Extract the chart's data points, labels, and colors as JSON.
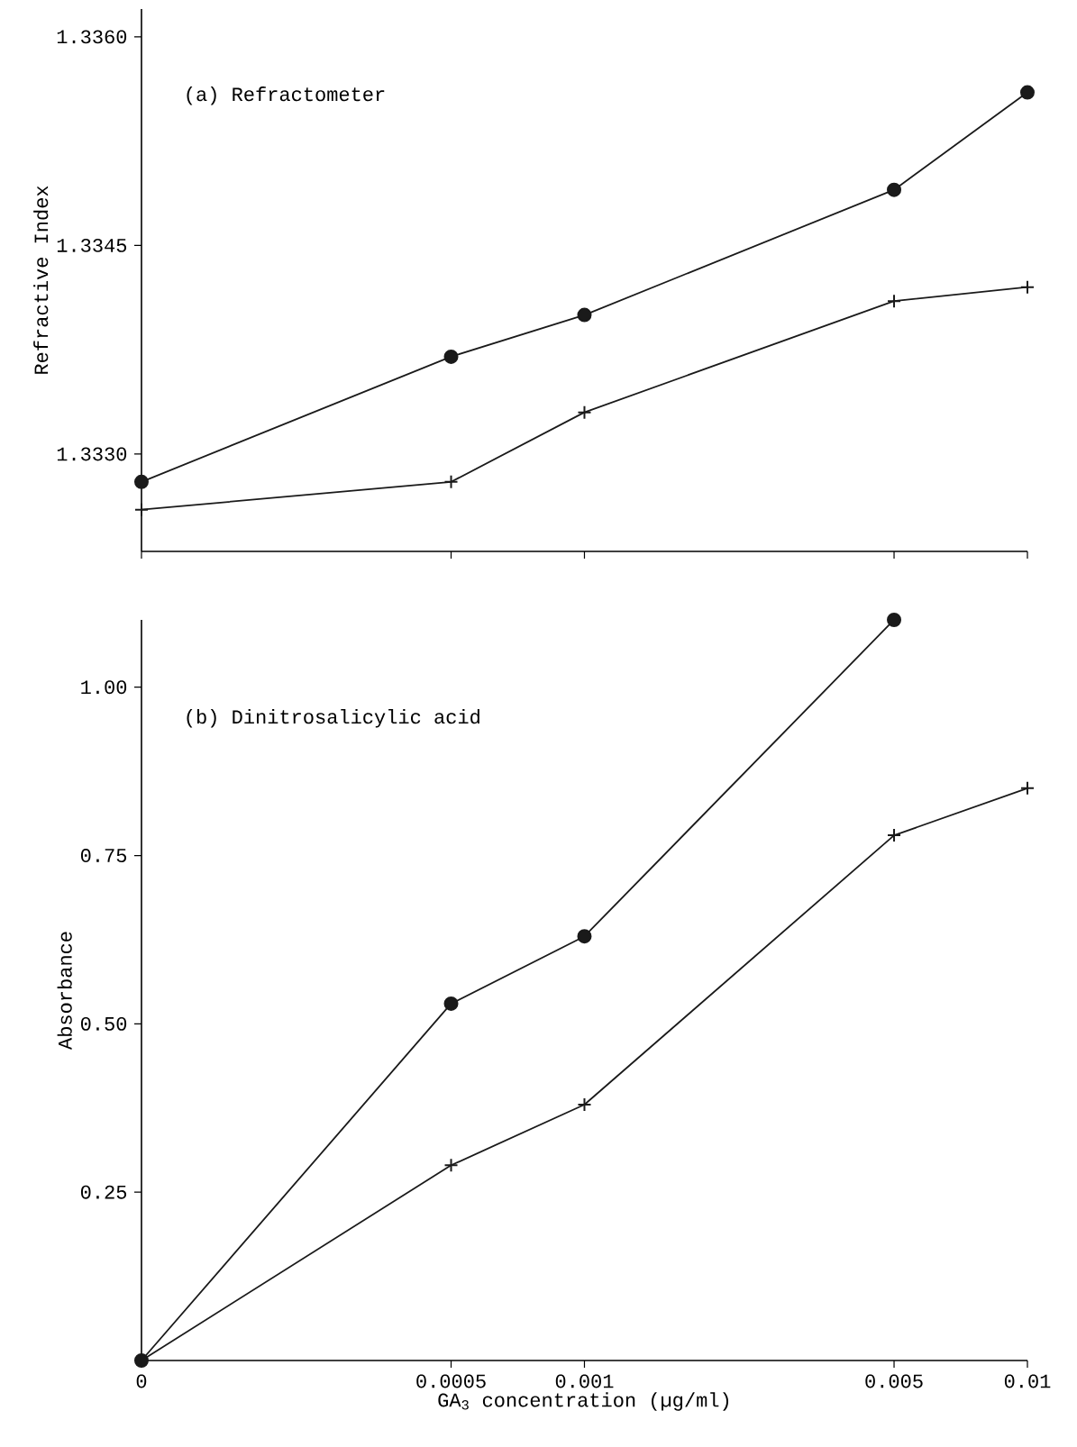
{
  "chart_data": [
    {
      "type": "line",
      "title": "(a) Refractometer",
      "ylabel": "Refractive Index",
      "x": [
        0.0001,
        0.0005,
        0.001,
        0.005,
        0.01
      ],
      "xlim": [
        0.0001,
        0.01
      ],
      "log": "x",
      "xticks": [
        {
          "value": 0.0001,
          "label": null
        },
        {
          "value": 0.0005,
          "label": null
        },
        {
          "value": 0.001,
          "label": null
        },
        {
          "value": 0.005,
          "label": null
        },
        {
          "value": 0.01,
          "label": null
        }
      ],
      "ylim": [
        1.3323,
        1.3362
      ],
      "yticks": [
        {
          "value": 1.333,
          "label": "1.3330"
        },
        {
          "value": 1.3345,
          "label": "1.3345"
        },
        {
          "value": 1.336,
          "label": "1.3360"
        }
      ],
      "tick_labels": "y",
      "series": [
        {
          "color": "#1a1a1a",
          "marker": "circle",
          "values": [
            1.3328,
            1.3337,
            1.334,
            1.3349,
            1.3356
          ]
        },
        {
          "color": "#1a1a1a",
          "marker": "cross",
          "values": [
            1.3326,
            1.3328,
            1.3333,
            1.3341,
            1.3342
          ]
        }
      ]
    },
    {
      "type": "line",
      "title": "(b) Dinitrosalicylic acid",
      "ylabel": "Absorbance",
      "xlabel": "GA$_{3}$ concentration (µg/ml)",
      "x": [
        0.0001,
        0.0005,
        0.001,
        0.005,
        0.01
      ],
      "xlim": [
        0.0001,
        0.01
      ],
      "log": "x",
      "xticks": [
        {
          "value": 0.0001,
          "label": "0"
        },
        {
          "value": 0.0005,
          "label": "0.0005"
        },
        {
          "value": 0.001,
          "label": "0.001"
        },
        {
          "value": 0.005,
          "label": "0.005"
        },
        {
          "value": 0.01,
          "label": "0.01"
        }
      ],
      "ylim": [
        0,
        1.1
      ],
      "yticks": [
        {
          "value": 0.25,
          "label": "0.25"
        },
        {
          "value": 0.5,
          "label": "0.50"
        },
        {
          "value": 0.75,
          "label": "0.75"
        },
        {
          "value": 1.0,
          "label": "1.00"
        }
      ],
      "series": [
        {
          "color": "#1a1a1a",
          "marker": "circle",
          "values": [
            0,
            0.53,
            0.63,
            1.1,
            null
          ]
        },
        {
          "color": "#1a1a1a",
          "marker": "cross",
          "values": [
            0,
            0.29,
            0.38,
            0.78,
            0.85
          ]
        }
      ]
    }
  ]
}
